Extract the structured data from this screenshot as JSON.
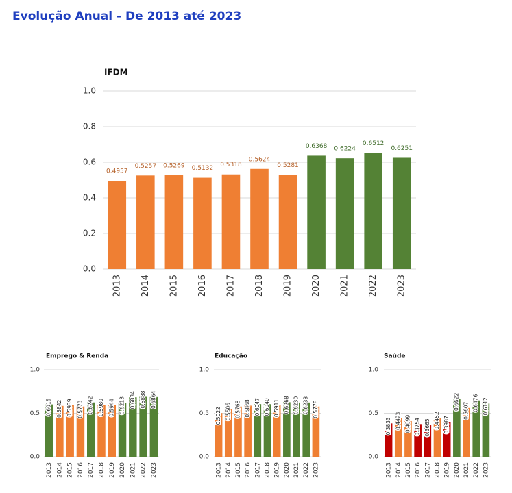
{
  "header": {
    "title": "Evolução Anual - De 2013 até 2023"
  },
  "chart_data": [
    {
      "type": "bar",
      "title": "IFDM",
      "categories": [
        "2013",
        "2014",
        "2015",
        "2016",
        "2017",
        "2018",
        "2019",
        "2020",
        "2021",
        "2022",
        "2023"
      ],
      "values": [
        0.4957,
        0.5257,
        0.5269,
        0.5132,
        0.5318,
        0.5624,
        0.5281,
        0.6368,
        0.6224,
        0.6512,
        0.6251
      ],
      "colors": [
        "#ef7f33",
        "#ef7f33",
        "#ef7f33",
        "#ef7f33",
        "#ef7f33",
        "#ef7f33",
        "#ef7f33",
        "#548235",
        "#548235",
        "#548235",
        "#548235"
      ],
      "ylim": [
        0,
        1
      ],
      "yticks": [
        {
          "value": 0,
          "label": "0.0"
        },
        0.2,
        0.4,
        0.6,
        0.8,
        {
          "value": 1,
          "label": "1.0"
        }
      ],
      "grid": true
    },
    {
      "type": "bar",
      "title": "Emprego & Renda",
      "categories": [
        "2013",
        "2014",
        "2015",
        "2016",
        "2017",
        "2018",
        "2019",
        "2020",
        "2021",
        "2022",
        "2023"
      ],
      "values": [
        0.6015,
        0.5842,
        0.5939,
        0.5773,
        0.6242,
        0.598,
        0.5944,
        0.6213,
        0.6834,
        0.6888,
        0.6864
      ],
      "value_labels": [
        "0.6015",
        "0.5842",
        "0.5939",
        "0.5773",
        "0.6242",
        "0.5980",
        "0.5944",
        "0.6213",
        "0.6834",
        "0.6888",
        "0.6864"
      ],
      "colors": [
        "#548235",
        "#ef7f33",
        "#ef7f33",
        "#ef7f33",
        "#548235",
        "#ef7f33",
        "#ef7f33",
        "#548235",
        "#548235",
        "#548235",
        "#548235"
      ],
      "ylim": [
        0,
        1
      ],
      "yticks": [
        {
          "value": 0,
          "label": "0.0"
        },
        0.5,
        {
          "value": 1,
          "label": "1.0"
        }
      ],
      "grid": true
    },
    {
      "type": "bar",
      "title": "Educação",
      "categories": [
        "2013",
        "2014",
        "2015",
        "2016",
        "2017",
        "2018",
        "2019",
        "2020",
        "2021",
        "2022",
        "2023"
      ],
      "values": [
        0.5022,
        0.5506,
        0.5768,
        0.5868,
        0.6047,
        0.604,
        0.5911,
        0.6268,
        0.623,
        0.6233,
        0.5778
      ],
      "value_labels": [
        "0.5022",
        "0.5506",
        "0.5768",
        "0.5868",
        "0.6047",
        "0.6040",
        "0.5911",
        "0.6268",
        "0.6230",
        "0.6233",
        "0.5778"
      ],
      "colors": [
        "#ef7f33",
        "#ef7f33",
        "#ef7f33",
        "#ef7f33",
        "#548235",
        "#548235",
        "#ef7f33",
        "#548235",
        "#548235",
        "#548235",
        "#ef7f33"
      ],
      "ylim": [
        0,
        1
      ],
      "yticks": [
        {
          "value": 0,
          "label": "0.0"
        },
        0.5,
        {
          "value": 1,
          "label": "1.0"
        }
      ],
      "grid": true
    },
    {
      "type": "bar",
      "title": "Saúde",
      "categories": [
        "2013",
        "2014",
        "2015",
        "2016",
        "2017",
        "2018",
        "2019",
        "2020",
        "2021",
        "2022",
        "2023"
      ],
      "values": [
        0.3833,
        0.4423,
        0.4099,
        0.3754,
        0.3665,
        0.4452,
        0.3987,
        0.6622,
        0.5607,
        0.6476,
        0.6112
      ],
      "value_labels": [
        "0.3833",
        "0.4423",
        "0.4099",
        "0.3754",
        "0.3665",
        "0.4452",
        "0.3987",
        "0.6622",
        "0.5607",
        "0.6476",
        "0.6112"
      ],
      "colors": [
        "#c00000",
        "#ef7f33",
        "#ef7f33",
        "#c00000",
        "#c00000",
        "#ef7f33",
        "#c00000",
        "#548235",
        "#ef7f33",
        "#548235",
        "#548235"
      ],
      "ylim": [
        0,
        1
      ],
      "yticks": [
        {
          "value": 0,
          "label": "0.0"
        },
        0.5,
        {
          "value": 1,
          "label": "1.0"
        }
      ],
      "grid": true
    }
  ]
}
